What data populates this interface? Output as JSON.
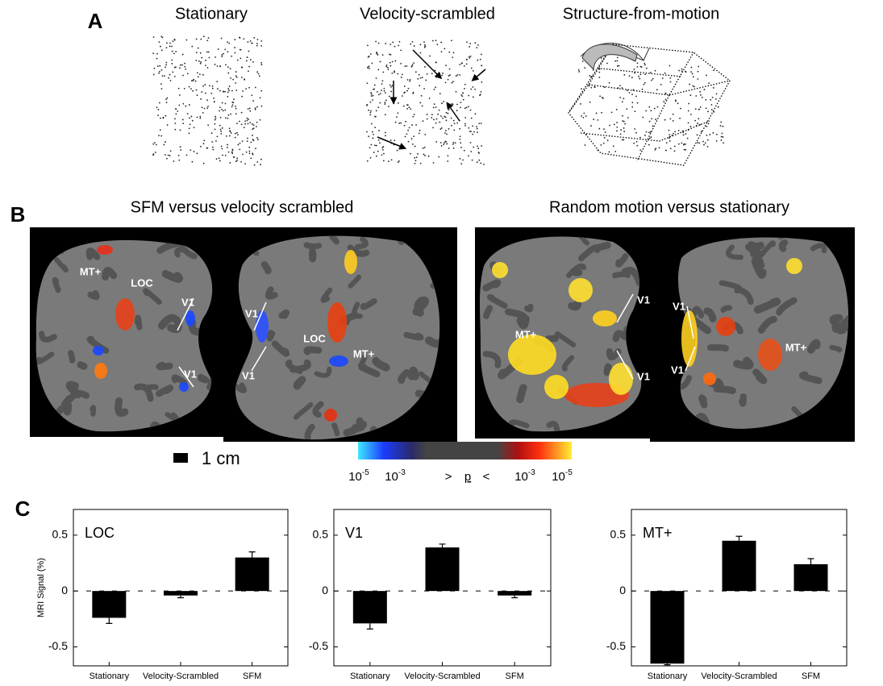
{
  "panel_a": {
    "label": "A",
    "titles": [
      "Stationary",
      "Velocity-scrambled",
      "Structure-from-motion"
    ]
  },
  "panel_b": {
    "label": "B",
    "titles": [
      "SFM versus velocity scrambled",
      "Random motion versus stationary"
    ],
    "brain_labels": [
      [
        "MT+",
        "LOC",
        "V1",
        "V1"
      ],
      [
        "V1",
        "V1",
        "LOC",
        "MT+"
      ],
      [
        "V1",
        "MT+",
        "V1"
      ],
      [
        "V1",
        "V1",
        "MT+"
      ]
    ],
    "scale_label": "1 cm",
    "colorbar": {
      "ticks": [
        {
          "base": "10",
          "exp": "-5"
        },
        {
          "base": "10",
          "exp": "-3"
        },
        {
          "base": "10",
          "exp": "-3"
        },
        {
          "base": "10",
          "exp": "-5"
        }
      ],
      "relation": [
        ">",
        "p",
        "<"
      ]
    }
  },
  "panel_c": {
    "label": "C"
  },
  "chart_data": [
    {
      "type": "bar",
      "title": "LOC",
      "y_label": "MRI Signal (%)",
      "categories": [
        "Stationary",
        "Velocity-Scrambled",
        "SFM"
      ],
      "values": [
        -0.24,
        -0.04,
        0.3
      ],
      "errors": [
        0.05,
        0.02,
        0.05
      ],
      "color": "#000000",
      "ylim": [
        -0.67,
        0.73
      ],
      "yticks": [
        -0.5,
        0,
        0.5
      ]
    },
    {
      "type": "bar",
      "title": "V1",
      "categories": [
        "Stationary",
        "Velocity-Scrambled",
        "SFM"
      ],
      "values": [
        -0.29,
        0.39,
        -0.04
      ],
      "errors": [
        0.05,
        0.03,
        0.02
      ],
      "color": "#000000",
      "ylim": [
        -0.67,
        0.73
      ],
      "yticks": [
        -0.5,
        0,
        0.5
      ]
    },
    {
      "type": "bar",
      "title": "MT+",
      "categories": [
        "Stationary",
        "Velocity-Scrambled",
        "SFM"
      ],
      "values": [
        -0.65,
        0.45,
        0.24
      ],
      "errors": [
        0.01,
        0.04,
        0.05
      ],
      "color": "#000000",
      "ylim": [
        -0.67,
        0.73
      ],
      "yticks": [
        -0.5,
        0,
        0.5
      ]
    }
  ]
}
